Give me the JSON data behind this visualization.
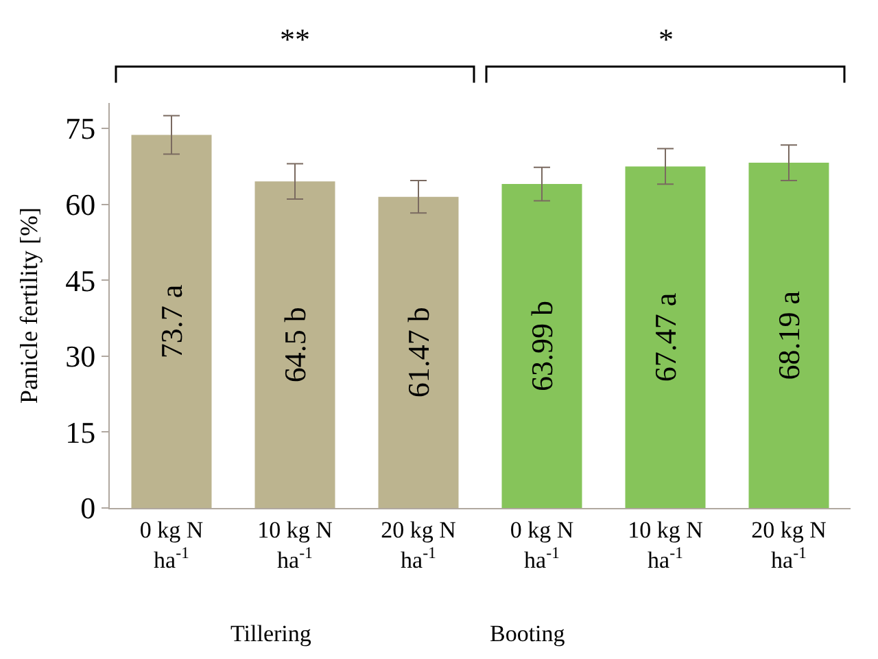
{
  "chart_data": {
    "type": "bar",
    "ylabel": "Panicle fertility [%]",
    "categories": [
      "0 kg N ha$^{-1}$",
      "10 kg N ha$^{-1}$",
      "20 kg N ha$^{-1}$",
      "0 kg N ha$^{-1}$",
      "10 kg N ha$^{-1}$",
      "20 kg N ha$^{-1}$"
    ],
    "values": [
      73.7,
      64.5,
      61.47,
      63.99,
      67.47,
      68.19
    ],
    "value_labels": [
      "73.7 a",
      "64.5 b",
      "61.47 b",
      "63.99 b",
      "67.47 a",
      "68.19 a"
    ],
    "colors": [
      "#bcb48f",
      "#bcb48f",
      "#bcb48f",
      "#86c45a",
      "#86c45a",
      "#86c45a"
    ],
    "errors": [
      3.8,
      3.5,
      3.2,
      3.3,
      3.5,
      3.5
    ],
    "ylim": [
      0,
      80
    ],
    "yticks": [
      0,
      15,
      30,
      45,
      60,
      75
    ],
    "annotations": [
      "**",
      "*",
      "Tillering",
      "Booting"
    ]
  }
}
